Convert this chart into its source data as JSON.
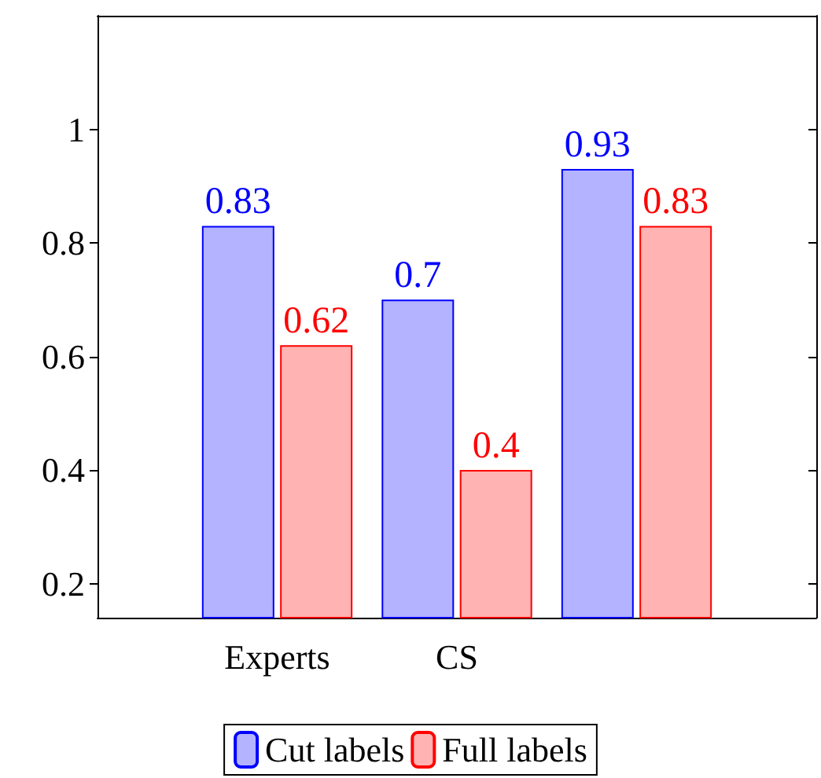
{
  "chart_data": {
    "type": "bar",
    "categories": [
      "Experts",
      "CS",
      null
    ],
    "series": [
      {
        "name": "Cut labels",
        "color": "#b3b3ff",
        "values": [
          0.83,
          0.7,
          0.93
        ]
      },
      {
        "name": "Full labels",
        "color": "#ffb3b3",
        "values": [
          0.62,
          0.4,
          0.83
        ]
      }
    ],
    "ylim": [
      0.14,
      1.2
    ],
    "yticks": [
      0.2,
      0.4,
      0.6,
      0.8,
      1
    ],
    "data_labels": true,
    "legend": "bottom",
    "grid": false
  }
}
